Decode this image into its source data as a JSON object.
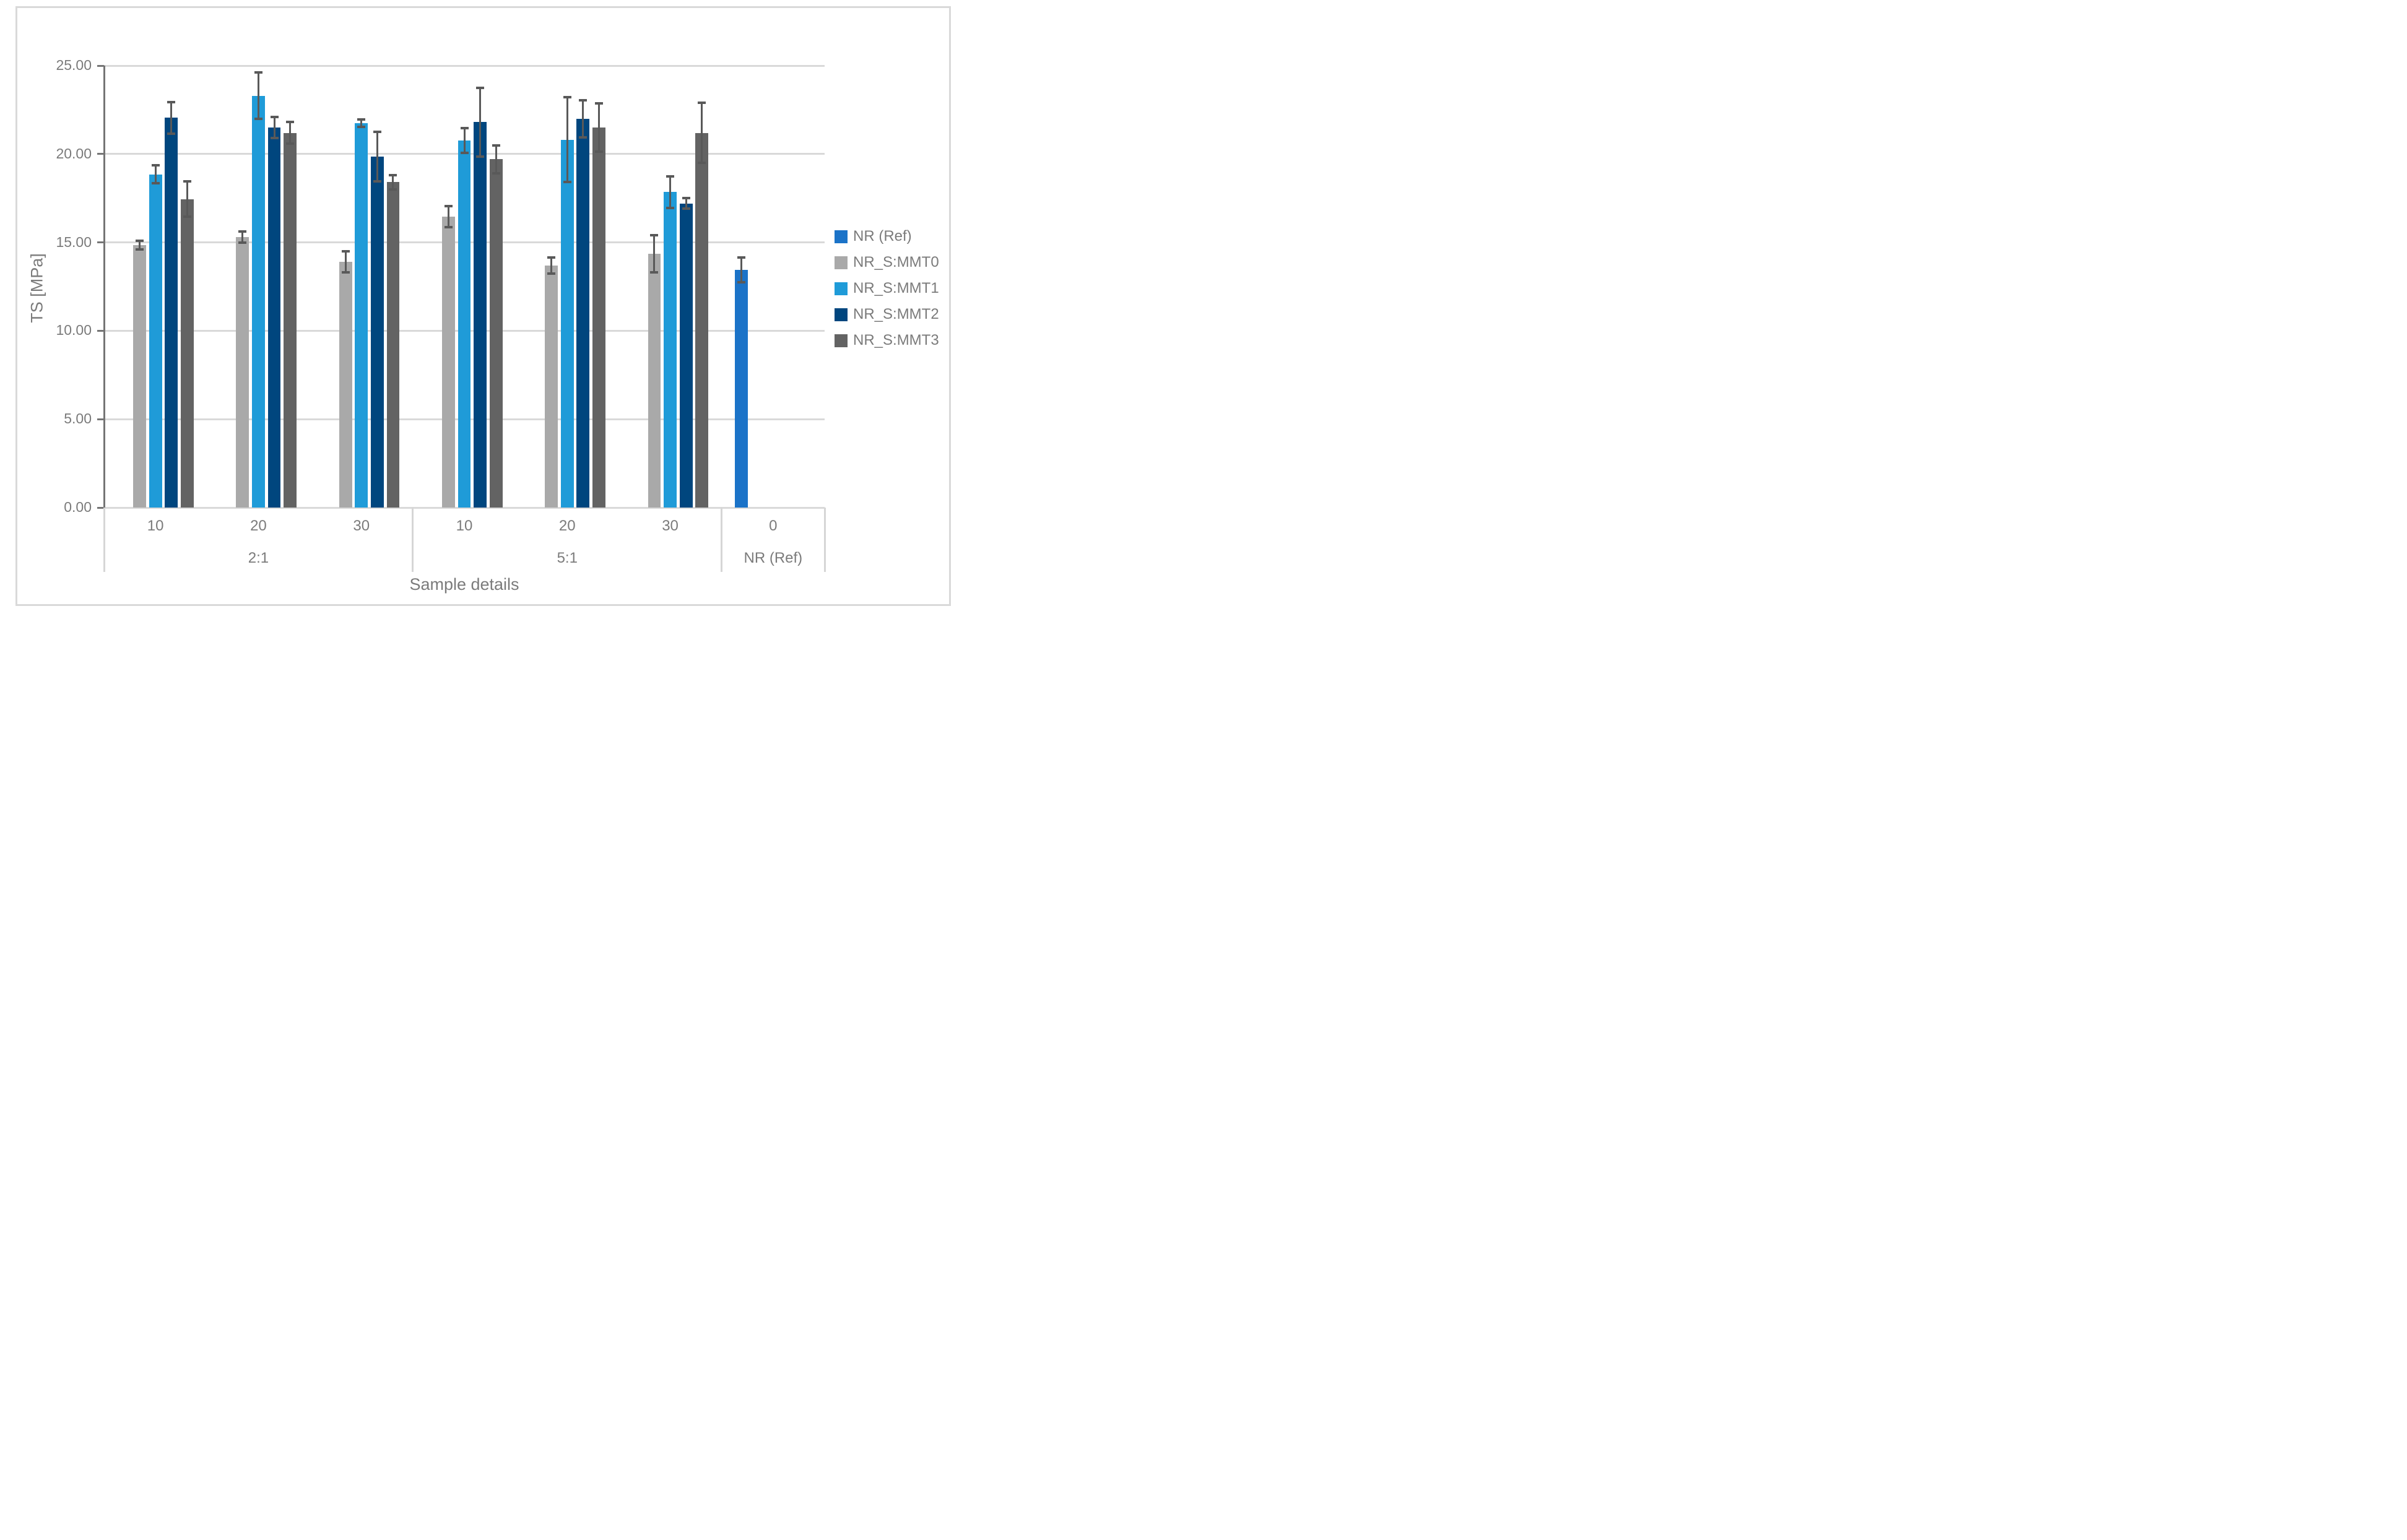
{
  "chart_data": {
    "type": "bar",
    "title": "",
    "ylabel": "TS [MPa]",
    "xlabel": "Sample details",
    "ylim": [
      0,
      25
    ],
    "ytick_labels": [
      "0.00",
      "5.00",
      "10.00",
      "15.00",
      "20.00",
      "25.00"
    ],
    "grid": true,
    "legend_position": "right",
    "colors": {
      "gridline": "#D9D9D9",
      "axis_line": "#757575",
      "error_bar": "#595959",
      "text": "#7B7B7B",
      "frame_border": "#D9D9D9"
    },
    "series": [
      {
        "name": "NR (Ref)",
        "color": "#1B73C8"
      },
      {
        "name": "NR_S:MMT0",
        "color": "#A9A9A9"
      },
      {
        "name": "NR_S:MMT1",
        "color": "#1F9BD8"
      },
      {
        "name": "NR_S:MMT2",
        "color": "#00467E"
      },
      {
        "name": "NR_S:MMT3",
        "color": "#636363"
      }
    ],
    "group_labels": [
      "2:1",
      "5:1",
      "NR (Ref)"
    ],
    "group_spans": [
      3,
      3,
      1
    ],
    "categories": [
      {
        "loading": "10",
        "group": "2:1",
        "bars": [
          null,
          [
            14.85,
            0.25
          ],
          [
            18.85,
            0.5
          ],
          [
            22.05,
            0.9
          ],
          [
            17.45,
            1.0
          ]
        ]
      },
      {
        "loading": "20",
        "group": "2:1",
        "bars": [
          null,
          [
            15.3,
            0.3
          ],
          [
            23.3,
            1.3
          ],
          [
            21.5,
            0.6
          ],
          [
            21.2,
            0.6
          ]
        ]
      },
      {
        "loading": "30",
        "group": "2:1",
        "bars": [
          null,
          [
            13.9,
            0.6
          ],
          [
            21.75,
            0.2
          ],
          [
            19.85,
            1.4
          ],
          [
            18.4,
            0.4
          ]
        ]
      },
      {
        "loading": "10",
        "group": "5:1",
        "bars": [
          null,
          [
            16.45,
            0.6
          ],
          [
            20.75,
            0.7
          ],
          [
            21.8,
            1.95
          ],
          [
            19.7,
            0.8
          ]
        ]
      },
      {
        "loading": "20",
        "group": "5:1",
        "bars": [
          null,
          [
            13.7,
            0.45
          ],
          [
            20.8,
            2.4
          ],
          [
            22.0,
            1.05
          ],
          [
            21.5,
            1.35
          ]
        ]
      },
      {
        "loading": "30",
        "group": "5:1",
        "bars": [
          null,
          [
            14.35,
            1.05
          ],
          [
            17.85,
            0.9
          ],
          [
            17.2,
            0.3
          ],
          [
            21.2,
            1.7
          ]
        ]
      },
      {
        "loading": "0",
        "group": "NR (Ref)",
        "bars": [
          [
            13.45,
            0.7
          ],
          null,
          null,
          null,
          null
        ]
      }
    ]
  }
}
